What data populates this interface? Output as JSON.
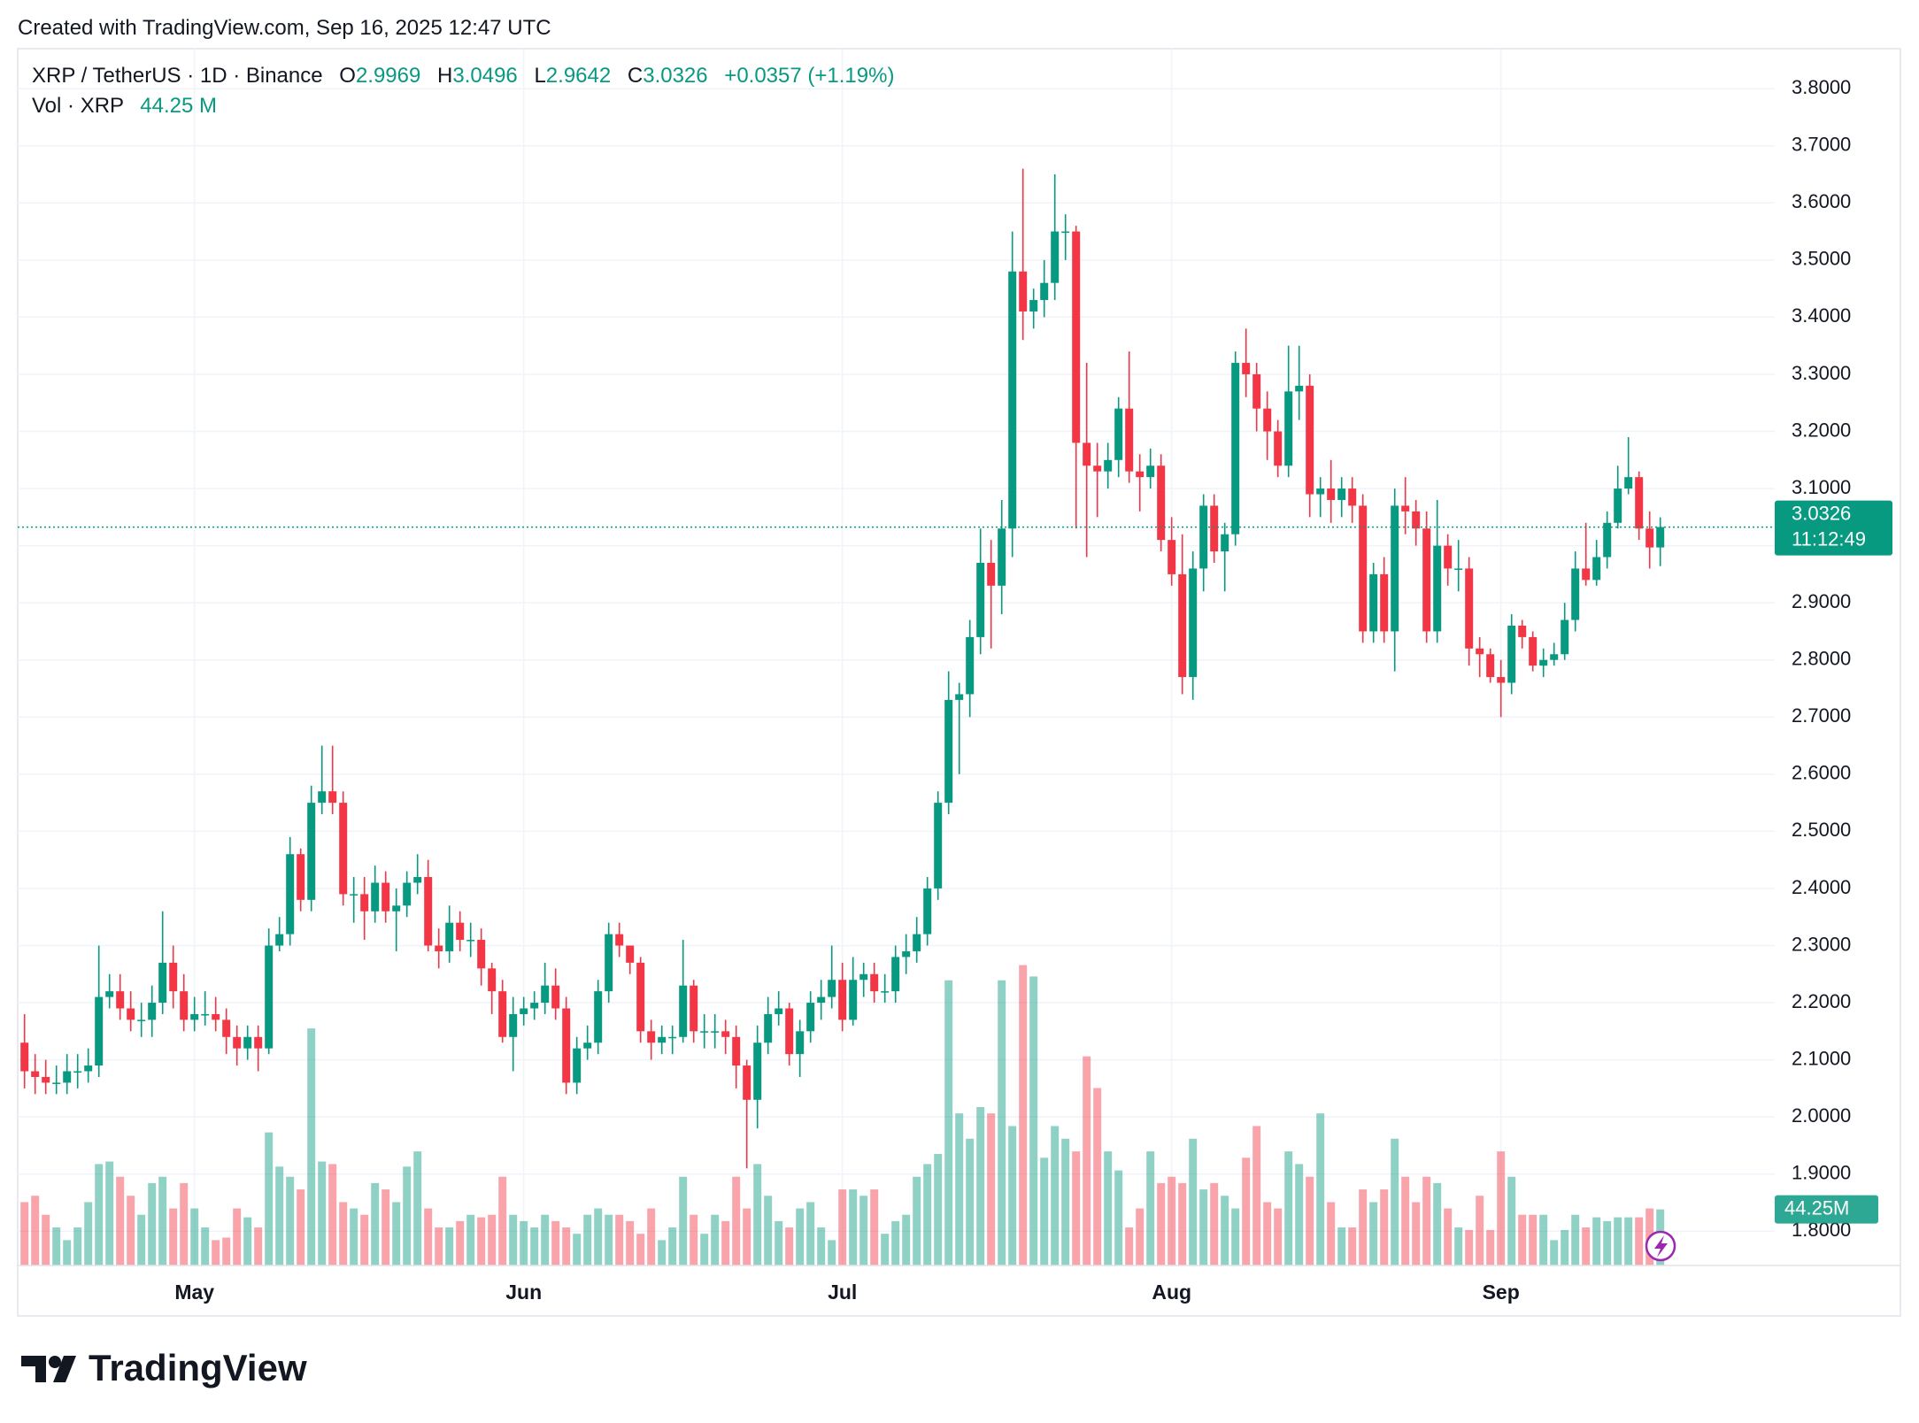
{
  "header": "Created with TradingView.com, Sep 16, 2025 12:47 UTC",
  "footer": "TradingView",
  "chart_data": {
    "type": "candlestick",
    "symbol": "XRP / TetherUS · 1D · Binance",
    "ohlc_keys": [
      "O",
      "H",
      "L",
      "C"
    ],
    "change_label": "+0.0357 (+1.19%)",
    "countdown": "11:12:49",
    "up_color": "#089981",
    "down_color": "#f23645",
    "grid": true,
    "ylim": [
      1.74,
      3.87
    ],
    "yticks": [
      {
        "value": 1.8,
        "label": "1.8000"
      },
      {
        "value": 1.9,
        "label": "1.9000"
      },
      {
        "value": 2.0,
        "label": "2.0000"
      },
      {
        "value": 2.1,
        "label": "2.1000"
      },
      {
        "value": 2.2,
        "label": "2.2000"
      },
      {
        "value": 2.3,
        "label": "2.3000"
      },
      {
        "value": 2.4,
        "label": "2.4000"
      },
      {
        "value": 2.5,
        "label": "2.5000"
      },
      {
        "value": 2.6,
        "label": "2.6000"
      },
      {
        "value": 2.7,
        "label": "2.7000"
      },
      {
        "value": 2.8,
        "label": "2.8000"
      },
      {
        "value": 2.9,
        "label": "2.9000"
      },
      {
        "value": 3.0,
        "label": "3.0000"
      },
      {
        "value": 3.1,
        "label": "3.1000"
      },
      {
        "value": 3.2,
        "label": "3.2000"
      },
      {
        "value": 3.3,
        "label": "3.3000"
      },
      {
        "value": 3.4,
        "label": "3.4000"
      },
      {
        "value": 3.5,
        "label": "3.5000"
      },
      {
        "value": 3.6,
        "label": "3.6000"
      },
      {
        "value": 3.7,
        "label": "3.7000"
      },
      {
        "value": 3.8,
        "label": "3.8000"
      }
    ],
    "y2lim": [
      0,
      960
    ],
    "categories": [
      null,
      null,
      null,
      null,
      null,
      null,
      null,
      null,
      null,
      null,
      null,
      null,
      null,
      null,
      null,
      null,
      "May",
      null,
      null,
      null,
      null,
      null,
      null,
      null,
      null,
      null,
      null,
      null,
      null,
      null,
      null,
      null,
      null,
      null,
      null,
      null,
      null,
      null,
      null,
      null,
      null,
      null,
      null,
      null,
      null,
      null,
      null,
      "Jun",
      null,
      null,
      null,
      null,
      null,
      null,
      null,
      null,
      null,
      null,
      null,
      null,
      null,
      null,
      null,
      null,
      null,
      null,
      null,
      null,
      null,
      null,
      null,
      null,
      null,
      null,
      null,
      null,
      null,
      "Jul",
      null,
      null,
      null,
      null,
      null,
      null,
      null,
      null,
      null,
      null,
      null,
      null,
      null,
      null,
      null,
      null,
      null,
      null,
      null,
      null,
      null,
      null,
      null,
      null,
      null,
      null,
      null,
      null,
      null,
      null,
      "Aug",
      null,
      null,
      null,
      null,
      null,
      null,
      null,
      null,
      null,
      null,
      null,
      null,
      null,
      null,
      null,
      null,
      null,
      null,
      null,
      null,
      null,
      null,
      null,
      null,
      null,
      null,
      null,
      null,
      null,
      null,
      "Sep",
      null,
      null,
      null,
      null,
      null,
      null,
      null,
      null,
      null,
      null,
      null,
      null,
      null,
      null,
      null
    ],
    "open": [
      2.13,
      2.08,
      2.07,
      2.06,
      2.06,
      2.08,
      2.08,
      2.09,
      2.21,
      2.22,
      2.19,
      2.17,
      2.17,
      2.2,
      2.27,
      2.22,
      2.17,
      2.18,
      2.18,
      2.17,
      2.14,
      2.12,
      2.14,
      2.12,
      2.3,
      2.32,
      2.46,
      2.38,
      2.55,
      2.57,
      2.55,
      2.39,
      2.39,
      2.36,
      2.41,
      2.36,
      2.37,
      2.41,
      2.42,
      2.3,
      2.29,
      2.34,
      2.31,
      2.31,
      2.26,
      2.22,
      2.14,
      2.18,
      2.19,
      2.2,
      2.23,
      2.19,
      2.06,
      2.12,
      2.13,
      2.22,
      2.32,
      2.3,
      2.27,
      2.15,
      2.13,
      2.14,
      2.14,
      2.23,
      2.15,
      2.15,
      2.15,
      2.14,
      2.09,
      2.03,
      2.13,
      2.18,
      2.19,
      2.11,
      2.15,
      2.2,
      2.21,
      2.24,
      2.17,
      2.24,
      2.25,
      2.22,
      2.22,
      2.28,
      2.29,
      2.32,
      2.4,
      2.55,
      2.73,
      2.74,
      2.84,
      2.97,
      2.93,
      3.03,
      3.48,
      3.41,
      3.43,
      3.46,
      3.55,
      3.55,
      3.18,
      3.14,
      3.13,
      3.15,
      3.24,
      3.13,
      3.12,
      3.14,
      3.01,
      2.95,
      2.77,
      2.96,
      3.07,
      2.99,
      3.02,
      3.32,
      3.3,
      3.24,
      3.2,
      3.14,
      3.27,
      3.28,
      3.09,
      3.1,
      3.08,
      3.1,
      3.07,
      2.85,
      2.95,
      2.85,
      3.07,
      3.06,
      3.03,
      2.85,
      3.0,
      2.96,
      2.96,
      2.82,
      2.81,
      2.77,
      2.76,
      2.86,
      2.84,
      2.79,
      2.8,
      2.81,
      2.87,
      2.96,
      2.94,
      2.98,
      3.04,
      3.1,
      3.12,
      3.03,
      2.9969
    ],
    "high": [
      2.18,
      2.11,
      2.1,
      2.09,
      2.11,
      2.11,
      2.12,
      2.3,
      2.25,
      2.25,
      2.22,
      2.2,
      2.23,
      2.36,
      2.3,
      2.25,
      2.21,
      2.22,
      2.21,
      2.19,
      2.16,
      2.16,
      2.16,
      2.33,
      2.35,
      2.49,
      2.47,
      2.58,
      2.65,
      2.65,
      2.57,
      2.42,
      2.42,
      2.44,
      2.43,
      2.4,
      2.43,
      2.46,
      2.45,
      2.33,
      2.37,
      2.36,
      2.34,
      2.33,
      2.27,
      2.24,
      2.21,
      2.21,
      2.22,
      2.27,
      2.26,
      2.21,
      2.14,
      2.16,
      2.24,
      2.34,
      2.34,
      2.3,
      2.28,
      2.17,
      2.16,
      2.16,
      2.31,
      2.24,
      2.18,
      2.18,
      2.17,
      2.16,
      2.1,
      2.16,
      2.21,
      2.22,
      2.2,
      2.17,
      2.22,
      2.24,
      2.3,
      2.27,
      2.28,
      2.27,
      2.27,
      2.25,
      2.3,
      2.32,
      2.35,
      2.42,
      2.57,
      2.78,
      2.76,
      2.87,
      3.03,
      3.01,
      3.08,
      3.55,
      3.66,
      3.45,
      3.5,
      3.65,
      3.58,
      3.56,
      3.32,
      3.18,
      3.18,
      3.26,
      3.34,
      3.16,
      3.17,
      3.16,
      3.05,
      3.02,
      2.99,
      3.09,
      3.09,
      3.04,
      3.34,
      3.38,
      3.32,
      3.27,
      3.22,
      3.35,
      3.35,
      3.3,
      3.12,
      3.15,
      3.12,
      3.12,
      3.09,
      2.97,
      2.98,
      3.1,
      3.12,
      3.08,
      3.06,
      3.08,
      3.02,
      3.01,
      2.98,
      2.84,
      2.82,
      2.8,
      2.88,
      2.87,
      2.85,
      2.82,
      2.83,
      2.9,
      2.99,
      3.04,
      3.01,
      3.06,
      3.14,
      3.19,
      3.13,
      3.06,
      3.0496
    ],
    "low": [
      2.05,
      2.04,
      2.04,
      2.04,
      2.04,
      2.05,
      2.06,
      2.07,
      2.19,
      2.17,
      2.15,
      2.14,
      2.14,
      2.18,
      2.19,
      2.15,
      2.15,
      2.16,
      2.15,
      2.11,
      2.09,
      2.1,
      2.08,
      2.11,
      2.29,
      2.3,
      2.36,
      2.36,
      2.53,
      2.53,
      2.37,
      2.34,
      2.31,
      2.34,
      2.34,
      2.29,
      2.35,
      2.39,
      2.29,
      2.26,
      2.27,
      2.29,
      2.28,
      2.23,
      2.18,
      2.13,
      2.08,
      2.16,
      2.17,
      2.18,
      2.17,
      2.04,
      2.04,
      2.1,
      2.11,
      2.2,
      2.28,
      2.25,
      2.13,
      2.1,
      2.11,
      2.11,
      2.13,
      2.13,
      2.12,
      2.12,
      2.11,
      2.05,
      1.91,
      1.98,
      2.11,
      2.16,
      2.09,
      2.07,
      2.13,
      2.17,
      2.19,
      2.15,
      2.16,
      2.21,
      2.2,
      2.2,
      2.2,
      2.25,
      2.27,
      2.3,
      2.38,
      2.53,
      2.6,
      2.7,
      2.81,
      2.82,
      2.88,
      2.98,
      3.36,
      3.38,
      3.4,
      3.43,
      3.5,
      3.03,
      2.98,
      3.05,
      3.1,
      3.12,
      3.11,
      3.06,
      3.1,
      2.99,
      2.93,
      2.74,
      2.73,
      2.92,
      2.97,
      2.92,
      3.0,
      3.26,
      3.2,
      3.15,
      3.12,
      3.12,
      3.22,
      3.05,
      3.05,
      3.04,
      3.05,
      3.04,
      2.83,
      2.83,
      2.83,
      2.78,
      3.02,
      3.0,
      2.83,
      2.83,
      2.93,
      2.92,
      2.79,
      2.77,
      2.76,
      2.7,
      2.74,
      2.82,
      2.78,
      2.77,
      2.79,
      2.8,
      2.85,
      2.93,
      2.93,
      2.96,
      3.03,
      3.09,
      3.01,
      2.96,
      2.9642
    ],
    "close": [
      2.08,
      2.07,
      2.06,
      2.06,
      2.08,
      2.08,
      2.09,
      2.21,
      2.22,
      2.19,
      2.17,
      2.17,
      2.2,
      2.27,
      2.22,
      2.17,
      2.18,
      2.18,
      2.17,
      2.14,
      2.12,
      2.14,
      2.12,
      2.3,
      2.32,
      2.46,
      2.38,
      2.55,
      2.57,
      2.55,
      2.39,
      2.39,
      2.36,
      2.41,
      2.36,
      2.37,
      2.41,
      2.42,
      2.3,
      2.29,
      2.34,
      2.31,
      2.31,
      2.26,
      2.22,
      2.14,
      2.18,
      2.19,
      2.2,
      2.23,
      2.19,
      2.06,
      2.12,
      2.13,
      2.22,
      2.32,
      2.3,
      2.27,
      2.15,
      2.13,
      2.14,
      2.14,
      2.23,
      2.15,
      2.15,
      2.15,
      2.14,
      2.09,
      2.03,
      2.13,
      2.18,
      2.19,
      2.11,
      2.15,
      2.2,
      2.21,
      2.24,
      2.17,
      2.24,
      2.25,
      2.22,
      2.22,
      2.28,
      2.29,
      2.32,
      2.4,
      2.55,
      2.73,
      2.74,
      2.84,
      2.97,
      2.93,
      3.03,
      3.48,
      3.41,
      3.43,
      3.46,
      3.55,
      3.55,
      3.18,
      3.14,
      3.13,
      3.15,
      3.24,
      3.13,
      3.12,
      3.14,
      3.01,
      2.95,
      2.77,
      2.96,
      3.07,
      2.99,
      3.02,
      3.32,
      3.3,
      3.24,
      3.2,
      3.14,
      3.27,
      3.28,
      3.09,
      3.1,
      3.08,
      3.1,
      3.07,
      2.85,
      2.95,
      2.85,
      3.07,
      3.06,
      3.03,
      2.85,
      3.0,
      2.96,
      2.96,
      2.82,
      2.81,
      2.77,
      2.76,
      2.86,
      2.84,
      2.79,
      2.8,
      2.81,
      2.87,
      2.96,
      2.94,
      2.98,
      3.04,
      3.1,
      3.12,
      3.03,
      2.9969,
      3.0326
    ],
    "volume": {
      "name": "Vol · XRP",
      "axis": "y2",
      "legend_label": "44.25 M",
      "axis_label": "44.25M",
      "values": [
        50,
        55,
        40,
        30,
        20,
        30,
        50,
        80,
        82,
        70,
        55,
        40,
        65,
        70,
        45,
        65,
        45,
        30,
        20,
        22,
        45,
        38,
        30,
        105,
        78,
        70,
        60,
        187,
        82,
        80,
        50,
        45,
        40,
        65,
        60,
        50,
        78,
        90,
        45,
        30,
        30,
        35,
        40,
        38,
        40,
        70,
        40,
        35,
        30,
        40,
        35,
        30,
        25,
        40,
        45,
        40,
        40,
        35,
        25,
        45,
        20,
        30,
        70,
        40,
        25,
        40,
        35,
        70,
        45,
        80,
        55,
        35,
        30,
        45,
        50,
        30,
        20,
        60,
        60,
        55,
        60,
        25,
        35,
        40,
        70,
        80,
        88,
        225,
        120,
        100,
        125,
        120,
        225,
        110,
        237,
        228,
        85,
        110,
        100,
        90,
        165,
        140,
        90,
        75,
        30,
        45,
        90,
        65,
        70,
        65,
        100,
        60,
        65,
        55,
        45,
        85,
        110,
        50,
        45,
        90,
        80,
        70,
        120,
        50,
        30,
        30,
        60,
        50,
        60,
        100,
        70,
        50,
        70,
        65,
        45,
        30,
        28,
        55,
        28,
        90,
        70,
        40,
        40,
        40,
        20,
        28,
        40,
        30,
        38,
        35,
        38,
        38,
        38,
        45,
        44.25
      ]
    }
  }
}
